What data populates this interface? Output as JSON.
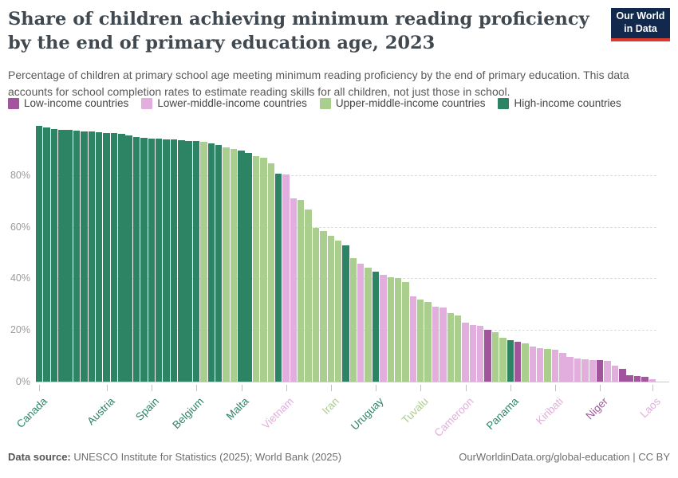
{
  "header": {
    "title": "Share of children achieving minimum reading proficiency by the end of primary education age, 2023",
    "subtitle": "Percentage of children at primary school age meeting minimum reading proficiency by the end of primary education. This data accounts for school completion rates to estimate reading skills for all children, not just those in school.",
    "logo_line1": "Our World",
    "logo_line2": "in Data"
  },
  "colors": {
    "low": "#a2559c",
    "lower": "#e2aedd",
    "upper": "#aace8d",
    "high": "#2c8465"
  },
  "legend": {
    "items": [
      {
        "label": "Low-income countries",
        "group": "low"
      },
      {
        "label": "Lower-middle-income countries",
        "group": "lower"
      },
      {
        "label": "Upper-middle-income countries",
        "group": "upper"
      },
      {
        "label": "High-income countries",
        "group": "high"
      }
    ]
  },
  "chart_data": {
    "type": "bar",
    "title": "Share of children achieving minimum reading proficiency by the end of primary education age, 2023",
    "unit": "%",
    "ylim": [
      0,
      100
    ],
    "yticks": [
      0,
      20,
      40,
      60,
      80
    ],
    "grid": "dashed horizontal",
    "legend_position": "top",
    "sort": "descending",
    "values": [
      99,
      98.6,
      98,
      97.6,
      97.4,
      97.2,
      97,
      96.8,
      96.6,
      96.4,
      96.2,
      96,
      95.3,
      94.7,
      94.5,
      94.3,
      94.1,
      93.9,
      93.7,
      93.5,
      93.3,
      93.1,
      92.8,
      92.3,
      91.7,
      90.8,
      90.1,
      89.4,
      88.7,
      87.4,
      86.7,
      84.6,
      80.6,
      80.2,
      70.9,
      70.4,
      66.8,
      59.6,
      58.2,
      56.6,
      54.5,
      52.9,
      47.8,
      45.6,
      44.1,
      42.6,
      41.5,
      40.6,
      40,
      38.5,
      33.1,
      31.9,
      30.8,
      29,
      28.7,
      26.5,
      25.6,
      22.8,
      21.9,
      21.5,
      20,
      19.3,
      16.9,
      16.2,
      15.4,
      14.9,
      13.5,
      12.9,
      12.7,
      12.3,
      11.1,
      9.5,
      9,
      8.7,
      8.5,
      8.4,
      8,
      6.2,
      4.9,
      2.6,
      2.2,
      1.9,
      0.9
    ],
    "groups": [
      "high",
      "high",
      "high",
      "high",
      "high",
      "high",
      "high",
      "high",
      "high",
      "high",
      "high",
      "high",
      "high",
      "high",
      "high",
      "high",
      "high",
      "high",
      "high",
      "high",
      "high",
      "high",
      "upper",
      "high",
      "high",
      "upper",
      "upper",
      "high",
      "high",
      "upper",
      "upper",
      "upper",
      "high",
      "lower",
      "lower",
      "upper",
      "upper",
      "upper",
      "upper",
      "upper",
      "upper",
      "high",
      "upper",
      "lower",
      "upper",
      "high",
      "lower",
      "upper",
      "upper",
      "upper",
      "lower",
      "upper",
      "upper",
      "lower",
      "lower",
      "upper",
      "upper",
      "lower",
      "lower",
      "lower",
      "low",
      "upper",
      "upper",
      "high",
      "low",
      "upper",
      "lower",
      "lower",
      "upper",
      "lower",
      "lower",
      "lower",
      "lower",
      "lower",
      "lower",
      "low",
      "lower",
      "lower",
      "low",
      "low",
      "low",
      "low",
      "lower"
    ],
    "x_labels": [
      {
        "index": 0,
        "label": "Canada",
        "group": "high"
      },
      {
        "index": 9,
        "label": "Austria",
        "group": "high"
      },
      {
        "index": 15,
        "label": "Spain",
        "group": "high"
      },
      {
        "index": 21,
        "label": "Belgium",
        "group": "high"
      },
      {
        "index": 27,
        "label": "Malta",
        "group": "high"
      },
      {
        "index": 33,
        "label": "Vietnam",
        "group": "lower"
      },
      {
        "index": 39,
        "label": "Iran",
        "group": "upper"
      },
      {
        "index": 45,
        "label": "Uruguay",
        "group": "high"
      },
      {
        "index": 51,
        "label": "Tuvalu",
        "group": "upper"
      },
      {
        "index": 57,
        "label": "Cameroon",
        "group": "lower"
      },
      {
        "index": 63,
        "label": "Panama",
        "group": "high"
      },
      {
        "index": 69,
        "label": "Kiribati",
        "group": "lower"
      },
      {
        "index": 75,
        "label": "Niger",
        "group": "low"
      },
      {
        "index": 82,
        "label": "Laos",
        "group": "lower"
      }
    ]
  },
  "footer": {
    "source_label": "Data source:",
    "source_text": " UNESCO Institute for Statistics (2025); World Bank (2025)",
    "url_text": "OurWorldinData.org/global-education",
    "license_text": " | CC BY"
  }
}
